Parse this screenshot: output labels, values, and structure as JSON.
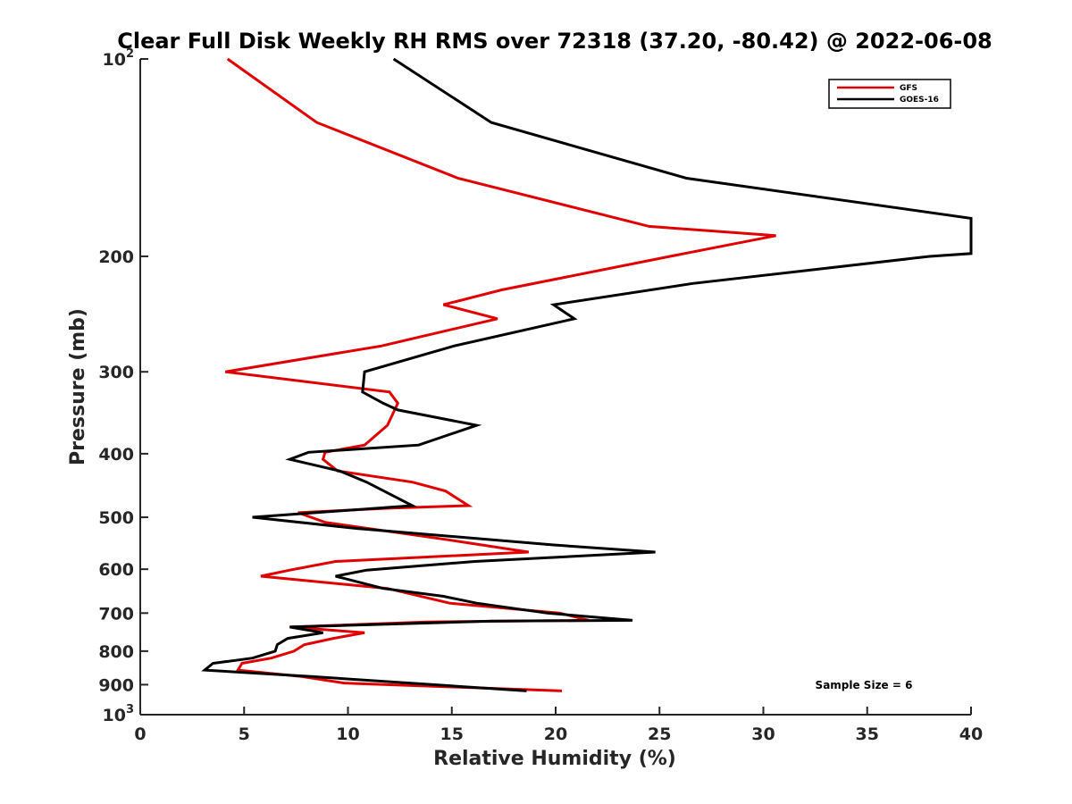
{
  "chart_data": {
    "type": "line",
    "title": "Clear Full Disk Weekly RH RMS over 72318 (37.20, -80.42) @ 2022-06-08",
    "xlabel": "Relative Humidity (%)",
    "ylabel": "Pressure (mb)",
    "xlim": [
      0,
      40
    ],
    "ylim": [
      100,
      1000
    ],
    "y_scale": "log",
    "y_reversed": true,
    "x_ticks": [
      "0",
      "5",
      "10",
      "15",
      "20",
      "25",
      "30",
      "35",
      "40"
    ],
    "y_ticks": [
      {
        "value": 100,
        "base": "10",
        "exp": "2"
      },
      {
        "value": 200,
        "label": "200"
      },
      {
        "value": 300,
        "label": "300"
      },
      {
        "value": 400,
        "label": "400"
      },
      {
        "value": 500,
        "label": "500"
      },
      {
        "value": 600,
        "label": "600"
      },
      {
        "value": 700,
        "label": "700"
      },
      {
        "value": 800,
        "label": "800"
      },
      {
        "value": 900,
        "label": "900"
      },
      {
        "value": 1000,
        "base": "10",
        "exp": "3"
      }
    ],
    "grid": false,
    "legend_position": "top-right",
    "annotation": "Sample Size = 6",
    "series": [
      {
        "name": "GFS",
        "color": "#e00000",
        "points": [
          [
            4.2,
            100
          ],
          [
            8.5,
            125
          ],
          [
            15.3,
            152
          ],
          [
            24.5,
            180
          ],
          [
            30.6,
            186
          ],
          [
            25.5,
            200
          ],
          [
            17.4,
            225
          ],
          [
            14.6,
            237
          ],
          [
            17.2,
            249
          ],
          [
            11.6,
            274
          ],
          [
            4.1,
            300
          ],
          [
            12.0,
            322
          ],
          [
            12.4,
            335
          ],
          [
            11.9,
            362
          ],
          [
            10.8,
            388
          ],
          [
            8.9,
            398
          ],
          [
            8.8,
            408
          ],
          [
            9.5,
            425
          ],
          [
            13.1,
            442
          ],
          [
            14.7,
            456
          ],
          [
            15.8,
            480
          ],
          [
            12.1,
            484
          ],
          [
            7.6,
            492
          ],
          [
            8.9,
            509
          ],
          [
            14.8,
            541
          ],
          [
            18.7,
            565
          ],
          [
            9.4,
            584
          ],
          [
            7.2,
            602
          ],
          [
            5.8,
            615
          ],
          [
            11.9,
            642
          ],
          [
            14.9,
            676
          ],
          [
            20.2,
            700
          ],
          [
            21.6,
            718
          ],
          [
            13.8,
            722
          ],
          [
            7.2,
            735
          ],
          [
            10.8,
            750
          ],
          [
            9.3,
            765
          ],
          [
            7.9,
            782
          ],
          [
            7.4,
            800
          ],
          [
            6.3,
            820
          ],
          [
            4.9,
            835
          ],
          [
            4.7,
            855
          ],
          [
            7.8,
            875
          ],
          [
            9.8,
            895
          ],
          [
            20.3,
            920
          ]
        ]
      },
      {
        "name": "GOES-16",
        "color": "#000000",
        "points": [
          [
            12.2,
            100
          ],
          [
            16.9,
            125
          ],
          [
            26.3,
            152
          ],
          [
            40.0,
            175
          ],
          [
            40.0,
            198
          ],
          [
            38.0,
            200
          ],
          [
            26.6,
            220
          ],
          [
            19.9,
            237
          ],
          [
            20.9,
            249
          ],
          [
            15.1,
            274
          ],
          [
            10.8,
            300
          ],
          [
            10.7,
            322
          ],
          [
            11.7,
            335
          ],
          [
            12.4,
            343
          ],
          [
            16.2,
            362
          ],
          [
            13.4,
            388
          ],
          [
            8.1,
            398
          ],
          [
            7.2,
            408
          ],
          [
            9.6,
            425
          ],
          [
            10.9,
            442
          ],
          [
            13.1,
            480
          ],
          [
            5.4,
            500
          ],
          [
            10.4,
            520
          ],
          [
            19.9,
            551
          ],
          [
            24.8,
            565
          ],
          [
            16.1,
            584
          ],
          [
            10.9,
            602
          ],
          [
            9.4,
            615
          ],
          [
            11.7,
            642
          ],
          [
            14.6,
            660
          ],
          [
            16.2,
            676
          ],
          [
            19.6,
            700
          ],
          [
            23.7,
            718
          ],
          [
            16.9,
            720
          ],
          [
            7.2,
            735
          ],
          [
            8.8,
            750
          ],
          [
            7.1,
            765
          ],
          [
            6.6,
            782
          ],
          [
            6.5,
            800
          ],
          [
            5.4,
            820
          ],
          [
            3.5,
            835
          ],
          [
            3.1,
            855
          ],
          [
            8.3,
            875
          ],
          [
            18.6,
            920
          ]
        ]
      }
    ]
  }
}
